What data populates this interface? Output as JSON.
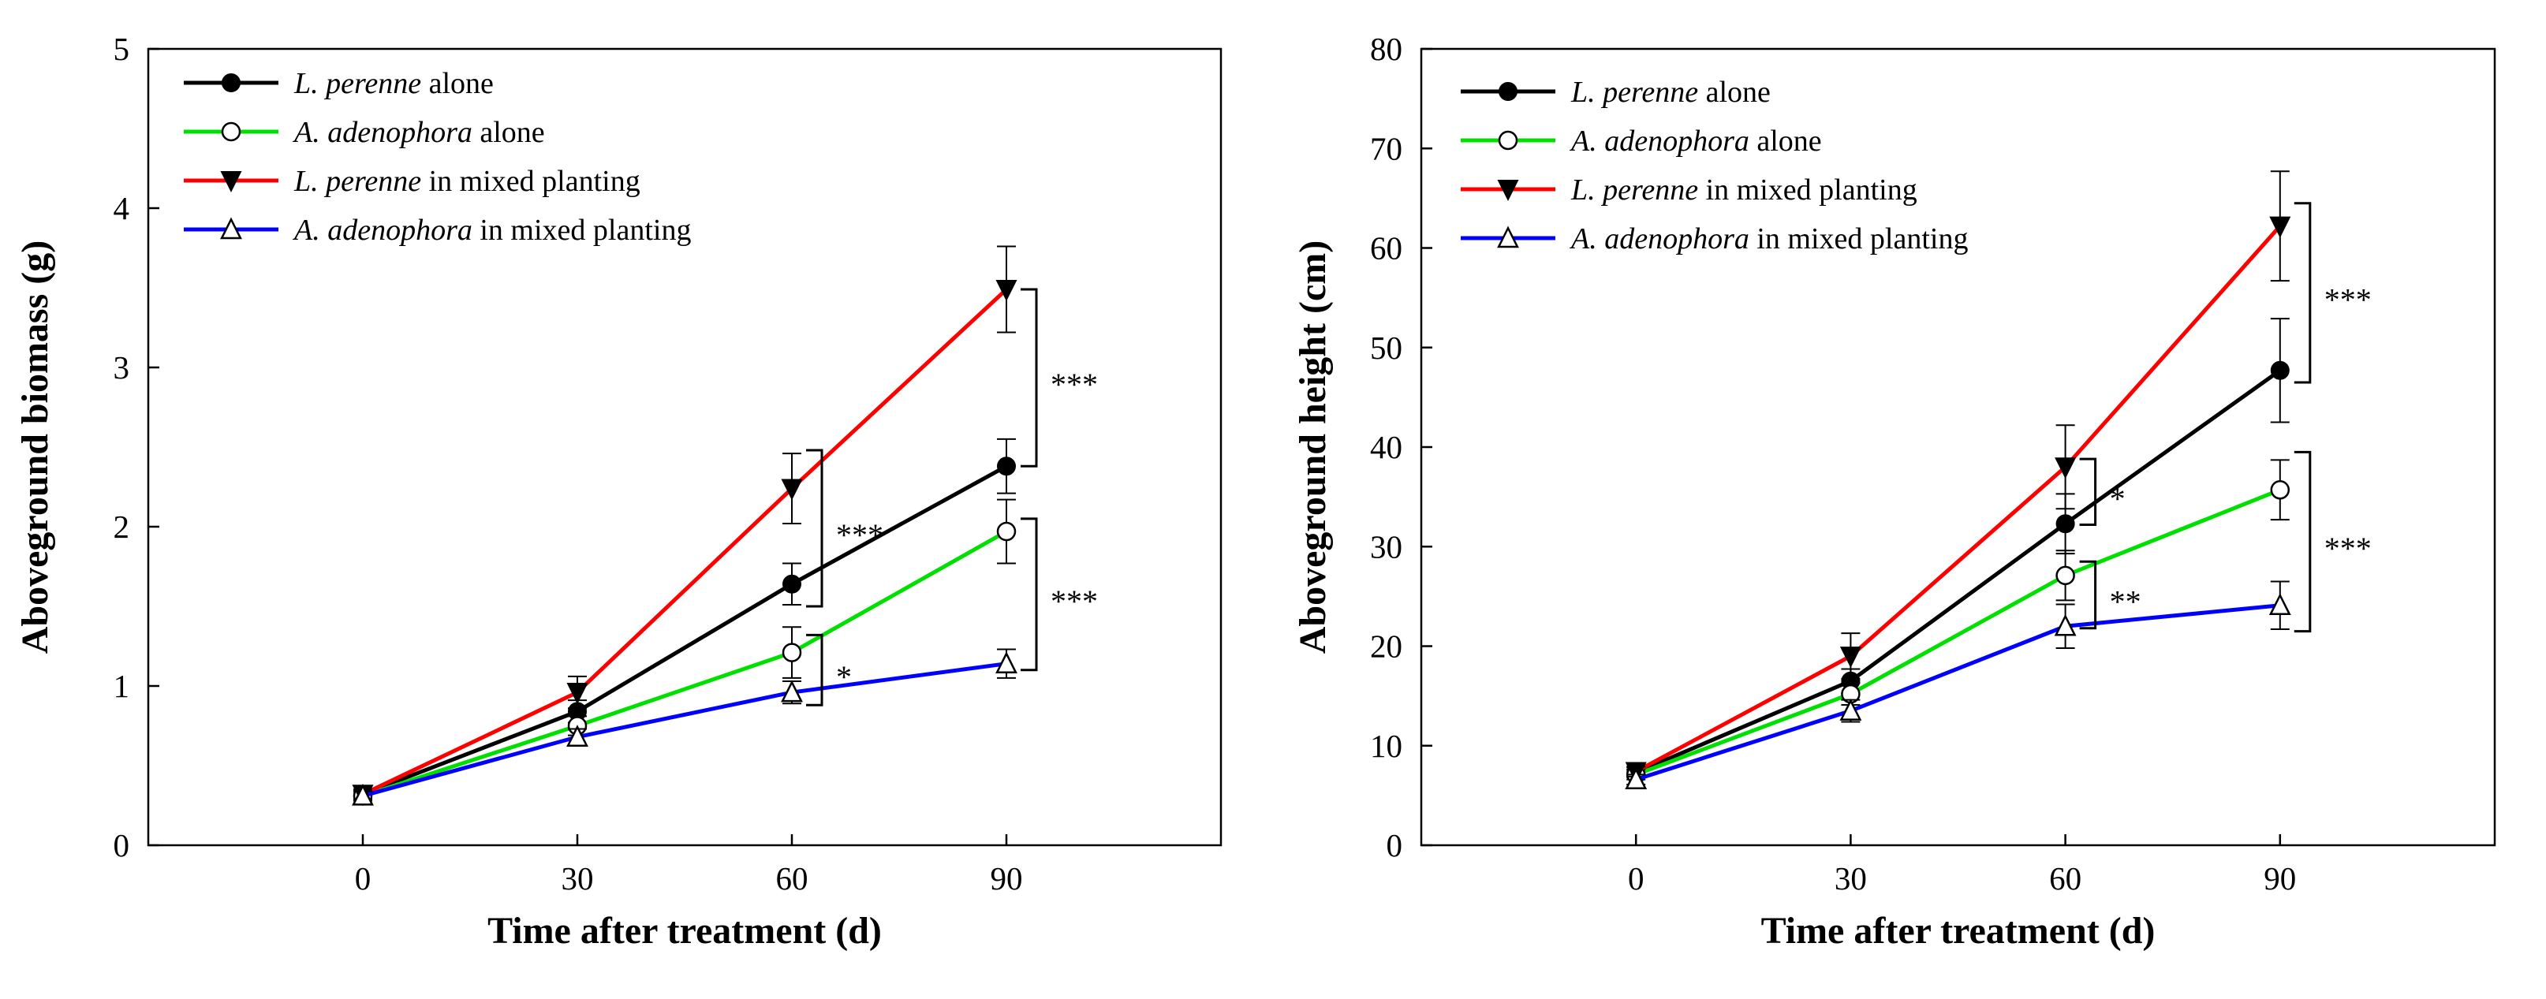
{
  "chart_data": [
    {
      "id": "biomass",
      "type": "line",
      "title": "",
      "xlabel": "Time after treatment (d)",
      "ylabel": "Aboveground biomass (g)",
      "xlim": [
        -30,
        120
      ],
      "ylim": [
        0,
        5
      ],
      "xticks": [
        0,
        30,
        60,
        90
      ],
      "yticks": [
        0,
        1,
        2,
        3,
        4,
        5
      ],
      "x": [
        0,
        30,
        60,
        90
      ],
      "grid": false,
      "legend_position": "top-left",
      "series": [
        {
          "name_italic": "L. perenne",
          "name_rest": " alone",
          "color": "#000000",
          "marker": "filled-circle",
          "values": [
            0.32,
            0.84,
            1.64,
            2.38
          ],
          "errors": [
            0.03,
            0.07,
            0.13,
            0.17
          ]
        },
        {
          "name_italic": "A. adenophora",
          "name_rest": " alone",
          "color": "#00e000",
          "marker": "open-circle",
          "values": [
            0.31,
            0.75,
            1.21,
            1.97
          ],
          "errors": [
            0.03,
            0.06,
            0.16,
            0.2
          ]
        },
        {
          "name_italic": "L. perenne",
          "name_rest": " in mixed planting",
          "color": "#ff0000",
          "marker": "filled-triangle-down",
          "values": [
            0.32,
            0.96,
            2.24,
            3.49
          ],
          "errors": [
            0.03,
            0.1,
            0.22,
            0.27
          ]
        },
        {
          "name_italic": "A. adenophora",
          "name_rest": " in mixed planting",
          "color": "#0000ff",
          "marker": "open-triangle-up",
          "values": [
            0.31,
            0.68,
            0.96,
            1.14
          ],
          "errors": [
            0.03,
            0.05,
            0.07,
            0.09
          ]
        }
      ],
      "significance": [
        {
          "x": 90,
          "y_low": 2.38,
          "y_high": 3.49,
          "label": "***"
        },
        {
          "x": 60,
          "y_low": 1.5,
          "y_high": 2.48,
          "label": "***"
        },
        {
          "x": 90,
          "y_low": 1.1,
          "y_high": 2.05,
          "label": "***"
        },
        {
          "x": 60,
          "y_low": 0.88,
          "y_high": 1.32,
          "label": "*"
        }
      ]
    },
    {
      "id": "height",
      "type": "line",
      "title": "",
      "xlabel": "Time after treatment (d)",
      "ylabel": "Aboveground height  (cm)",
      "xlim": [
        -30,
        120
      ],
      "ylim": [
        0,
        80
      ],
      "xticks": [
        0,
        30,
        60,
        90
      ],
      "yticks": [
        0,
        10,
        20,
        30,
        40,
        50,
        60,
        70,
        80
      ],
      "x": [
        0,
        30,
        60,
        90
      ],
      "grid": false,
      "legend_position": "top-left",
      "series": [
        {
          "name_italic": "L. perenne",
          "name_rest": " alone",
          "color": "#000000",
          "marker": "filled-circle",
          "values": [
            7.3,
            16.5,
            32.3,
            47.7
          ],
          "errors": [
            0.5,
            1.2,
            3.0,
            5.2
          ]
        },
        {
          "name_italic": "A. adenophora",
          "name_rest": " alone",
          "color": "#00e000",
          "marker": "open-circle",
          "values": [
            7.1,
            15.2,
            27.1,
            35.7
          ],
          "errors": [
            0.5,
            1.1,
            2.5,
            3.0
          ]
        },
        {
          "name_italic": "L. perenne",
          "name_rest": " in mixed planting",
          "color": "#ff0000",
          "marker": "filled-triangle-down",
          "values": [
            7.4,
            19.0,
            38.0,
            62.2
          ],
          "errors": [
            0.5,
            2.3,
            4.2,
            5.5
          ]
        },
        {
          "name_italic": "A. adenophora",
          "name_rest": " in mixed planting",
          "color": "#0000ff",
          "marker": "open-triangle-up",
          "values": [
            6.6,
            13.5,
            22.0,
            24.1
          ],
          "errors": [
            0.5,
            1.1,
            2.2,
            2.4
          ]
        }
      ],
      "significance": [
        {
          "x": 90,
          "y_low": 46.5,
          "y_high": 64.5,
          "label": "***"
        },
        {
          "x": 90,
          "y_low": 21.5,
          "y_high": 39.5,
          "label": "***"
        },
        {
          "x": 60,
          "y_low": 32.2,
          "y_high": 38.8,
          "label": "*"
        },
        {
          "x": 60,
          "y_low": 21.8,
          "y_high": 28.5,
          "label": "**"
        }
      ]
    }
  ]
}
